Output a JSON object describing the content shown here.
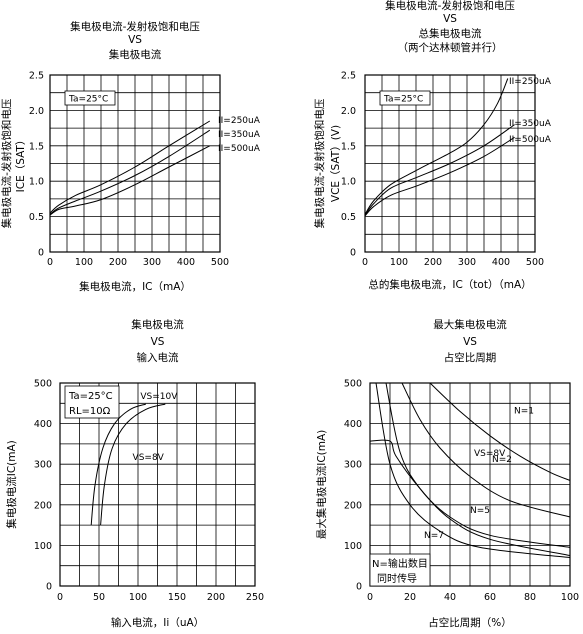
{
  "chart_data": [
    {
      "type": "line",
      "title_lines": [
        "集电极电流-发射极饱和电压",
        "VS",
        "集电极电流"
      ],
      "xlabel": "集电极电流，IC（mA）",
      "ylabel_lines": [
        "集电极电流-发射极饱和电压",
        "ICE（SAT）"
      ],
      "xlim": [
        0,
        500
      ],
      "ylim": [
        0,
        2.5
      ],
      "xticks": [
        0,
        100,
        200,
        300,
        400,
        500
      ],
      "yticks": [
        0,
        0.5,
        1.0,
        1.5,
        2.0,
        2.5
      ],
      "ytick_labels": [
        "0",
        "0.5",
        "1.0",
        "1.5",
        "2.0",
        "2.5"
      ],
      "xtick_labels": [
        "0",
        "100",
        "200",
        "300",
        "400",
        "500"
      ],
      "annotation": "Ta=25°C",
      "series": [
        {
          "name": "II=250uA",
          "x": [
            0,
            25,
            75,
            150,
            250,
            350,
            470
          ],
          "y": [
            0.55,
            0.66,
            0.8,
            0.95,
            1.2,
            1.5,
            1.85
          ]
        },
        {
          "name": "II=350uA",
          "x": [
            0,
            25,
            75,
            150,
            250,
            350,
            470
          ],
          "y": [
            0.53,
            0.62,
            0.72,
            0.86,
            1.08,
            1.35,
            1.72
          ]
        },
        {
          "name": "II=500uA",
          "x": [
            0,
            25,
            75,
            150,
            250,
            350,
            470
          ],
          "y": [
            0.52,
            0.6,
            0.65,
            0.74,
            0.95,
            1.2,
            1.5
          ]
        }
      ]
    },
    {
      "type": "line",
      "title_lines": [
        "集电极电流-发射极饱和电压",
        "VS",
        "总集电极电流",
        "（两个达林顿管并行）"
      ],
      "xlabel": "总的集电极电流，IC（tot）（mA）",
      "ylabel_lines": [
        "集电极电流-发射极饱和电压",
        "VCE（SAT）(V)"
      ],
      "xlim": [
        0,
        500
      ],
      "ylim": [
        0,
        2.5
      ],
      "xticks": [
        0,
        100,
        200,
        300,
        400,
        500
      ],
      "yticks": [
        0,
        0.5,
        1.0,
        1.5,
        2.0,
        2.5
      ],
      "ytick_labels": [
        "0",
        "0.5",
        "1.0",
        "1.5",
        "2.0",
        "2.5"
      ],
      "xtick_labels": [
        "0",
        "100",
        "200",
        "300",
        "400",
        "500"
      ],
      "annotation": "Ta=25°C",
      "series": [
        {
          "name": "II=250uA",
          "x": [
            0,
            25,
            75,
            150,
            250,
            300,
            350,
            390,
            420
          ],
          "y": [
            0.53,
            0.72,
            0.95,
            1.15,
            1.4,
            1.55,
            1.8,
            2.1,
            2.45
          ]
        },
        {
          "name": "II=350uA",
          "x": [
            0,
            25,
            75,
            150,
            250,
            350,
            440
          ],
          "y": [
            0.52,
            0.68,
            0.9,
            1.05,
            1.25,
            1.5,
            1.8
          ]
        },
        {
          "name": "II=500uA",
          "x": [
            0,
            25,
            75,
            150,
            250,
            350,
            440
          ],
          "y": [
            0.51,
            0.64,
            0.8,
            0.93,
            1.12,
            1.35,
            1.62
          ]
        }
      ]
    },
    {
      "type": "line",
      "title_lines": [
        "集电极电流",
        "VS",
        "输入电流"
      ],
      "xlabel": "输入电流，Ii（uA）",
      "ylabel_lines": [
        "集电极电流IC(mA)"
      ],
      "xlim": [
        0,
        250
      ],
      "ylim": [
        0,
        500
      ],
      "xticks": [
        0,
        50,
        100,
        150,
        200,
        250
      ],
      "yticks": [
        0,
        100,
        200,
        300,
        400,
        500
      ],
      "xtick_labels": [
        "0",
        "50",
        "100",
        "150",
        "200",
        "250"
      ],
      "ytick_labels": [
        "0",
        "100",
        "200",
        "300",
        "400",
        "500"
      ],
      "annotation_lines": [
        "Ta=25°C",
        "RL=10Ω"
      ],
      "series": [
        {
          "name": "VS=10V",
          "x": [
            40,
            45,
            55,
            70,
            90,
            110
          ],
          "y": [
            150,
            250,
            340,
            400,
            435,
            448
          ]
        },
        {
          "name": "VS=8V",
          "x": [
            52,
            57,
            67,
            85,
            110,
            135
          ],
          "y": [
            150,
            250,
            340,
            400,
            435,
            448
          ]
        }
      ]
    },
    {
      "type": "line",
      "title_lines": [
        "最大集电极电流",
        "VS",
        "占空比周期"
      ],
      "xlabel": "占空比周期（%）",
      "ylabel_lines": [
        "最大集电极电流IC(mA)"
      ],
      "xlim": [
        0,
        100
      ],
      "ylim": [
        0,
        500
      ],
      "xticks": [
        0,
        20,
        40,
        60,
        80,
        100
      ],
      "yticks": [
        0,
        100,
        200,
        300,
        400,
        500
      ],
      "xtick_labels": [
        "0",
        "20",
        "40",
        "60",
        "80",
        "100"
      ],
      "ytick_labels": [
        "0",
        "100",
        "200",
        "300",
        "400",
        "500"
      ],
      "annotation_lines": [
        "N=输出数目",
        "同时传导"
      ],
      "labels": {
        "n1": "N=1",
        "vs": "VS=8V",
        "n2": "N=2",
        "n5": "N=5",
        "n7": "N=7"
      },
      "series": [
        {
          "id": "n1",
          "x": [
            30,
            45,
            60,
            75,
            90,
            100
          ],
          "y": [
            500,
            430,
            370,
            320,
            280,
            260
          ]
        },
        {
          "id": "n2",
          "x": [
            16,
            25,
            35,
            50,
            70,
            100
          ],
          "y": [
            500,
            410,
            340,
            270,
            210,
            170
          ]
        },
        {
          "id": "n5",
          "x": [
            8,
            15,
            25,
            40,
            60,
            100
          ],
          "y": [
            500,
            330,
            240,
            170,
            125,
            95
          ]
        },
        {
          "id": "n7",
          "x": [
            3,
            10,
            20,
            35,
            55,
            100
          ],
          "y": [
            500,
            300,
            200,
            135,
            95,
            70
          ]
        },
        {
          "id": "vs8",
          "x": [
            0,
            10,
            13,
            25,
            40,
            60,
            100
          ],
          "y": [
            357,
            357,
            320,
            240,
            165,
            115,
            75
          ]
        }
      ]
    }
  ]
}
